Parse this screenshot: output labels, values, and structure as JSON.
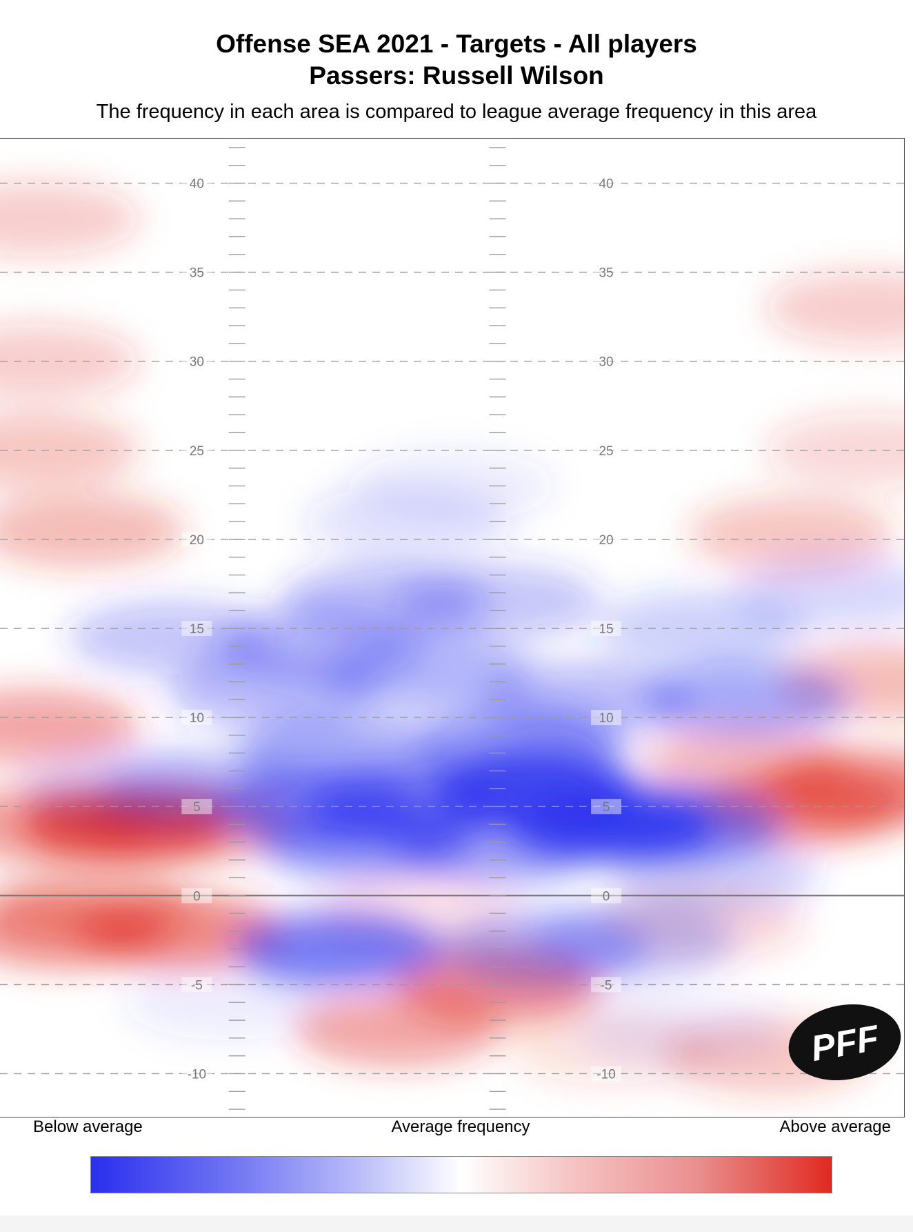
{
  "header": {
    "title_line1": "Offense SEA 2021 - Targets - All players",
    "title_line2": "Passers: Russell Wilson",
    "subtitle": "The frequency in each area is compared to league average frequency in this area"
  },
  "legend": {
    "below": "Below average",
    "average": "Average frequency",
    "above": "Above average",
    "low_color": "#2a2fee",
    "mid_color": "#ffffff",
    "high_color": "#e02a20"
  },
  "logo": {
    "text": "PFF",
    "color": "#111111"
  },
  "chart_data": {
    "type": "heatmap",
    "y_ticks": [
      40,
      35,
      30,
      25,
      20,
      15,
      10,
      5,
      0,
      -5,
      -10
    ],
    "ylim": [
      -12.5,
      42.5
    ],
    "line_of_scrimmage": 0,
    "grid": "dashed every 5 yards",
    "scale": "relative frequency, -1 (below average) to +1 (above average)",
    "cells": [
      {
        "x": -0.92,
        "y": 38,
        "v": 0.25
      },
      {
        "x": -0.92,
        "y": 30,
        "v": 0.25
      },
      {
        "x": -0.92,
        "y": 25,
        "v": 0.3
      },
      {
        "x": -0.82,
        "y": 20.5,
        "v": 0.35
      },
      {
        "x": -0.92,
        "y": 9.5,
        "v": 0.45
      },
      {
        "x": -0.72,
        "y": 4,
        "v": 0.85
      },
      {
        "x": -0.9,
        "y": 4,
        "v": 0.5
      },
      {
        "x": -0.58,
        "y": 4,
        "v": 0.5
      },
      {
        "x": -0.86,
        "y": -2,
        "v": 0.55
      },
      {
        "x": -0.6,
        "y": -2,
        "v": 0.6
      },
      {
        "x": -0.8,
        "y": -0.5,
        "v": 0.35
      },
      {
        "x": 0.92,
        "y": 33,
        "v": 0.25
      },
      {
        "x": 0.92,
        "y": 25,
        "v": 0.2
      },
      {
        "x": 0.75,
        "y": 20.3,
        "v": 0.3
      },
      {
        "x": 0.95,
        "y": 12,
        "v": 0.35
      },
      {
        "x": 0.78,
        "y": 5,
        "v": 0.6
      },
      {
        "x": 0.92,
        "y": 6,
        "v": 0.6
      },
      {
        "x": 0.65,
        "y": 7.5,
        "v": 0.35
      },
      {
        "x": 0.55,
        "y": -1.5,
        "v": 0.2
      },
      {
        "x": 0.7,
        "y": -9,
        "v": 0.3
      },
      {
        "x": 0.35,
        "y": -8.5,
        "v": 0.15
      },
      {
        "x": 0.1,
        "y": -5,
        "v": 0.6
      },
      {
        "x": -0.12,
        "y": -7.5,
        "v": 0.45
      },
      {
        "x": -0.08,
        "y": -1,
        "v": 0.15
      },
      {
        "x": -0.1,
        "y": 21,
        "v": -0.15
      },
      {
        "x": 0.0,
        "y": 23,
        "v": -0.1
      },
      {
        "x": -0.15,
        "y": 16.5,
        "v": -0.35
      },
      {
        "x": 0.1,
        "y": 16.5,
        "v": -0.3
      },
      {
        "x": -0.62,
        "y": 14.5,
        "v": -0.3
      },
      {
        "x": -0.3,
        "y": 14,
        "v": -0.35
      },
      {
        "x": 0.55,
        "y": 15,
        "v": -0.25
      },
      {
        "x": 0.85,
        "y": 17,
        "v": -0.2
      },
      {
        "x": -0.4,
        "y": 11.5,
        "v": -0.35
      },
      {
        "x": -0.05,
        "y": 12.5,
        "v": -0.4
      },
      {
        "x": 0.3,
        "y": 11,
        "v": -0.35
      },
      {
        "x": 0.65,
        "y": 11,
        "v": -0.45
      },
      {
        "x": -0.25,
        "y": 8,
        "v": -0.45
      },
      {
        "x": 0.15,
        "y": 8.5,
        "v": -0.55
      },
      {
        "x": -0.1,
        "y": 5,
        "v": -0.7
      },
      {
        "x": 0.18,
        "y": 6,
        "v": -0.95
      },
      {
        "x": 0.35,
        "y": 4,
        "v": -0.95
      },
      {
        "x": 0.5,
        "y": 4,
        "v": -0.6
      },
      {
        "x": -0.3,
        "y": 5,
        "v": -0.55
      },
      {
        "x": -0.2,
        "y": 3,
        "v": -0.55
      },
      {
        "x": -0.55,
        "y": 6,
        "v": -0.3
      },
      {
        "x": -0.72,
        "y": 6,
        "v": -0.2
      },
      {
        "x": 0.1,
        "y": 2.8,
        "v": -0.5
      },
      {
        "x": 0.58,
        "y": 1.2,
        "v": -0.25
      },
      {
        "x": -0.25,
        "y": -3,
        "v": -0.7
      },
      {
        "x": 0.2,
        "y": -3,
        "v": -0.4
      },
      {
        "x": 0.4,
        "y": -2.5,
        "v": -0.3
      },
      {
        "x": 0.5,
        "y": -7.5,
        "v": -0.1
      },
      {
        "x": -0.5,
        "y": -6,
        "v": -0.1
      }
    ]
  }
}
